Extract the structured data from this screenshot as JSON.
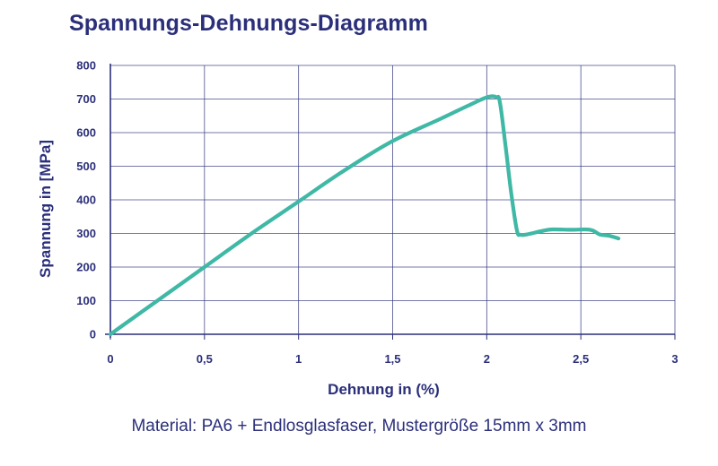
{
  "chart_data": {
    "type": "line",
    "title": "Spannungs-Dehnungs-Diagramm",
    "xlabel": "Dehnung in (%)",
    "ylabel": "Spannung in [MPa]",
    "xlim": [
      0,
      3
    ],
    "ylim": [
      0,
      800
    ],
    "x_ticks": [
      "0",
      "0,5",
      "1",
      "1,5",
      "2",
      "2,5",
      "3"
    ],
    "y_ticks": [
      "0",
      "100",
      "200",
      "300",
      "400",
      "500",
      "600",
      "700",
      "800"
    ],
    "grid": true,
    "series": [
      {
        "x": [
          0,
          0.25,
          0.5,
          0.75,
          1.0,
          1.25,
          1.5,
          1.75,
          1.9,
          2.0,
          2.05,
          2.07,
          2.1,
          2.13,
          2.16,
          2.18,
          2.22,
          2.3,
          2.35,
          2.45,
          2.55,
          2.6,
          2.65,
          2.7
        ],
        "y": [
          0,
          100,
          200,
          300,
          395,
          490,
          575,
          640,
          680,
          705,
          706,
          690,
          560,
          420,
          310,
          296,
          298,
          308,
          312,
          311,
          311,
          297,
          293,
          285
        ]
      }
    ],
    "colors": {
      "line": "#3fb8a5",
      "grid": "#2b2f7a",
      "text": "#2b2f7a"
    }
  },
  "caption": "Material: PA6 + Endlosglasfaser, Mustergröße 15mm x 3mm"
}
